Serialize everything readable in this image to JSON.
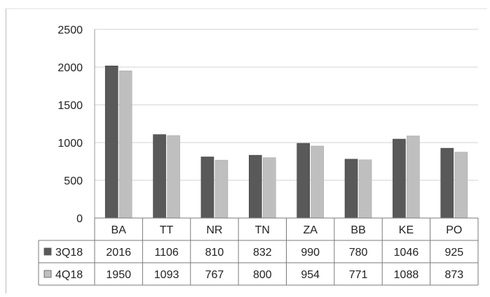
{
  "chart_data": {
    "type": "bar",
    "categories": [
      "BA",
      "TT",
      "NR",
      "TN",
      "ZA",
      "BB",
      "KE",
      "PO"
    ],
    "series": [
      {
        "name": "3Q18",
        "values": [
          2016,
          1106,
          810,
          832,
          990,
          780,
          1046,
          925
        ],
        "color": "#595959"
      },
      {
        "name": "4Q18",
        "values": [
          1950,
          1093,
          767,
          800,
          954,
          771,
          1088,
          873
        ],
        "color": "#bfbfbf"
      }
    ],
    "ylim": [
      0,
      2500
    ],
    "yticks": [
      0,
      500,
      1000,
      1500,
      2000,
      2500
    ],
    "grid": true,
    "legend": "data-table"
  }
}
